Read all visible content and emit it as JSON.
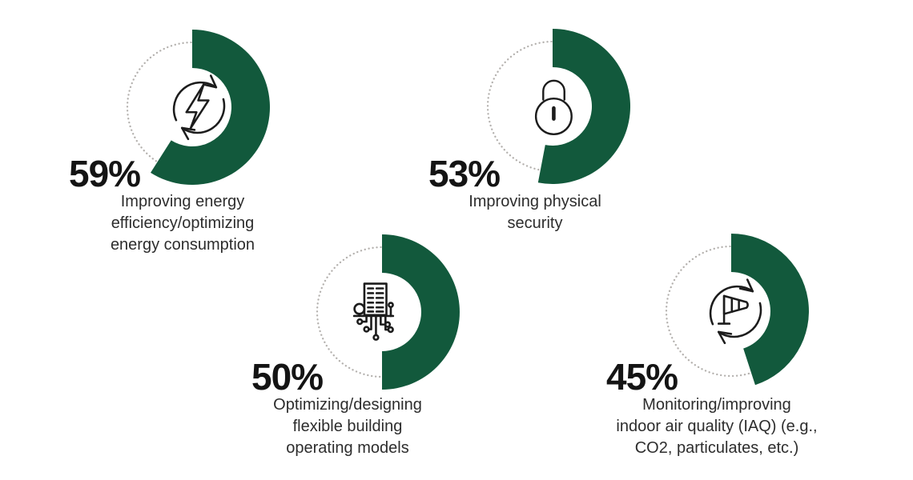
{
  "page": {
    "background": "#ffffff"
  },
  "chart_data": {
    "type": "donut",
    "unit": "%",
    "start_angle": "top",
    "direction": "clockwise",
    "legend_position": "none",
    "colors": {
      "fill": "#12593c",
      "track_dotted": "#b4b1ae",
      "icon_stroke": "#1c1c1c",
      "value_text": "#141414",
      "label_text": "#2d2d2d"
    },
    "items": [
      {
        "value": 59,
        "value_label": "59%",
        "label": "Improving energy\nefficiency/optimizing\nenergy consumption",
        "icon": "energy-cycle-icon"
      },
      {
        "value": 53,
        "value_label": "53%",
        "label": "Improving physical\nsecurity",
        "icon": "padlock-icon"
      },
      {
        "value": 50,
        "value_label": "50%",
        "label": "Optimizing/designing\nflexible building\noperating models",
        "icon": "smart-building-icon"
      },
      {
        "value": 45,
        "value_label": "45%",
        "label": "Monitoring/improving\nindoor air quality (IAQ) (e.g.,\nCO2, particulates, etc.)",
        "icon": "windsock-cycle-icon"
      }
    ]
  }
}
